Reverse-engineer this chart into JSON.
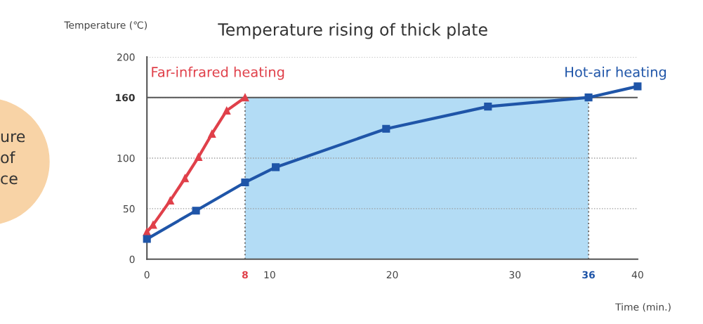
{
  "chart_data": {
    "type": "line",
    "title": "Temperature rising of thick plate",
    "ylabel": "Temperature (℃)",
    "xlabel": "Time (min.)",
    "series": [
      {
        "name": "Far-infrared heating",
        "color": "#e0404a",
        "marker": "triangle",
        "x": [
          0,
          0.5,
          1.9,
          3.1,
          4.2,
          5.3,
          6.5,
          8
        ],
        "values": [
          27,
          34,
          58,
          80,
          101,
          124,
          147,
          160
        ]
      },
      {
        "name": "Hot-air heating",
        "color": "#1f55a8",
        "marker": "square",
        "x": [
          0,
          4,
          8,
          10.5,
          19.5,
          27.8,
          36,
          40
        ],
        "values": [
          20,
          48,
          76,
          91,
          129,
          151,
          160,
          171
        ]
      }
    ],
    "xlim": [
      0,
      40
    ],
    "xticks": [
      0,
      8,
      10,
      20,
      30,
      36,
      40
    ],
    "ylim": [
      0,
      200
    ],
    "yticks": [
      0,
      50,
      100,
      160,
      200
    ],
    "grid": "y",
    "line_style": "solid",
    "ref_lines": [
      {
        "axis": "y",
        "value": 160,
        "color": "#555555",
        "line_style": "solid"
      },
      {
        "axis": "x",
        "value": 8,
        "color": "#777777",
        "line_style": "dotted"
      },
      {
        "axis": "x",
        "value": 36,
        "color": "#777777",
        "line_style": "dotted"
      }
    ],
    "bands": [
      {
        "axis": "x",
        "from": 8,
        "to": 36,
        "color": "#b3dcf5"
      }
    ],
    "annotations": [
      "ure",
      "of",
      "ce"
    ]
  }
}
